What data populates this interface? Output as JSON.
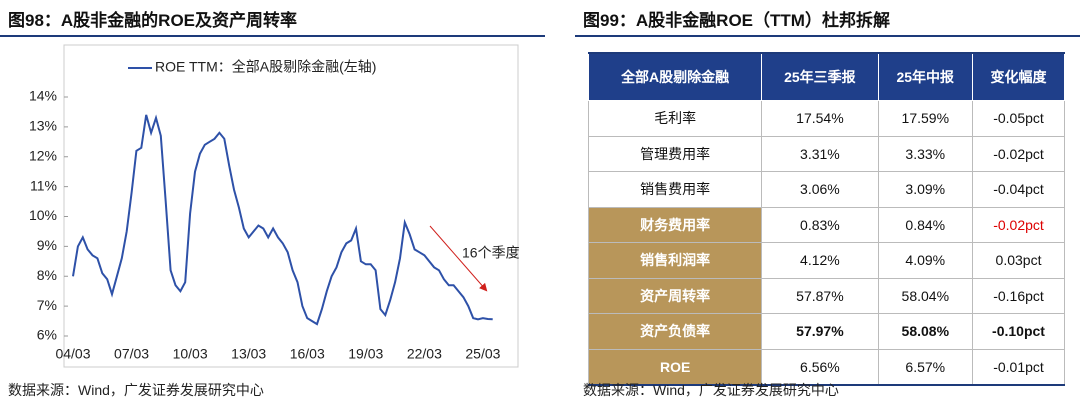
{
  "chart_data": {
    "type": "line",
    "title": "图98：A股非金融的ROE及资产周转率",
    "source": "数据来源：Wind，广发证券发展研究中心",
    "categories": [
      "04/03",
      null,
      null,
      null,
      null,
      null,
      null,
      null,
      null,
      null,
      null,
      null,
      "07/03",
      null,
      null,
      null,
      null,
      null,
      null,
      null,
      null,
      null,
      null,
      null,
      "10/03",
      null,
      null,
      null,
      null,
      null,
      null,
      null,
      null,
      null,
      null,
      null,
      "13/03",
      null,
      null,
      null,
      null,
      null,
      null,
      null,
      null,
      null,
      null,
      null,
      "16/03",
      null,
      null,
      null,
      null,
      null,
      null,
      null,
      null,
      null,
      null,
      null,
      "19/03",
      null,
      null,
      null,
      null,
      null,
      null,
      null,
      null,
      null,
      null,
      null,
      "22/03",
      null,
      null,
      null,
      null,
      null,
      null,
      null,
      null,
      null,
      null,
      null,
      "25/03",
      null,
      null
    ],
    "series": [
      {
        "name": "ROE TTM：全部A股剔除金融(左轴)",
        "color": "#2e51a8",
        "values": [
          8.0,
          9.0,
          9.3,
          8.9,
          8.7,
          8.6,
          8.1,
          7.9,
          7.4,
          8.0,
          8.6,
          9.5,
          10.8,
          12.2,
          12.3,
          13.4,
          12.8,
          13.3,
          12.7,
          10.5,
          8.2,
          7.7,
          7.5,
          7.8,
          10.1,
          11.5,
          12.1,
          12.4,
          12.5,
          12.6,
          12.8,
          12.6,
          11.7,
          10.9,
          10.3,
          9.6,
          9.3,
          9.5,
          9.7,
          9.6,
          9.3,
          9.6,
          9.3,
          9.1,
          8.8,
          8.2,
          7.8,
          7.0,
          6.6,
          6.5,
          6.4,
          6.9,
          7.5,
          8.0,
          8.3,
          8.8,
          9.1,
          9.2,
          9.6,
          8.5,
          8.4,
          8.4,
          8.2,
          6.9,
          6.7,
          7.2,
          7.8,
          8.6,
          9.8,
          9.4,
          8.9,
          8.8,
          8.7,
          8.5,
          8.3,
          8.2,
          7.9,
          7.7,
          7.7,
          7.5,
          7.3,
          7.0,
          6.6,
          6.56,
          6.6,
          6.57,
          6.56
        ]
      }
    ],
    "ylim": [
      6,
      14
    ],
    "yticks": [
      {
        "value": 6,
        "label": "6%"
      },
      {
        "value": 7,
        "label": "7%"
      },
      {
        "value": 8,
        "label": "8%"
      },
      {
        "value": 9,
        "label": "9%"
      },
      {
        "value": 10,
        "label": "10%"
      },
      {
        "value": 11,
        "label": "11%"
      },
      {
        "value": 12,
        "label": "12%"
      },
      {
        "value": 13,
        "label": "13%"
      },
      {
        "value": 14,
        "label": "14%"
      }
    ],
    "annotation": "16个季度",
    "annotation_color": "#d0201c"
  },
  "table": {
    "title": "图99：A股非金融ROE（TTM）杜邦拆解",
    "source": "数据来源：Wind，广发证券发展研究中心",
    "header": [
      "全部A股剔除金融",
      "25年三季报",
      "25年中报",
      "变化幅度"
    ],
    "rows": [
      [
        "毛利率",
        "17.54%",
        "17.59%",
        "-0.05pct"
      ],
      [
        "管理费用率",
        "3.31%",
        "3.33%",
        "-0.02pct"
      ],
      [
        "销售费用率",
        "3.06%",
        "3.09%",
        "-0.04pct"
      ],
      [
        "财务费用率",
        "0.83%",
        "0.84%",
        "-0.02pct"
      ],
      [
        "销售利润率",
        "4.12%",
        "4.09%",
        "0.03pct"
      ],
      [
        "资产周转率",
        "57.87%",
        "58.04%",
        "-0.16pct"
      ],
      [
        "资产负债率",
        "57.97%",
        "58.08%",
        "-0.10pct"
      ],
      [
        "ROE",
        "6.56%",
        "6.57%",
        "-0.01pct"
      ]
    ]
  }
}
